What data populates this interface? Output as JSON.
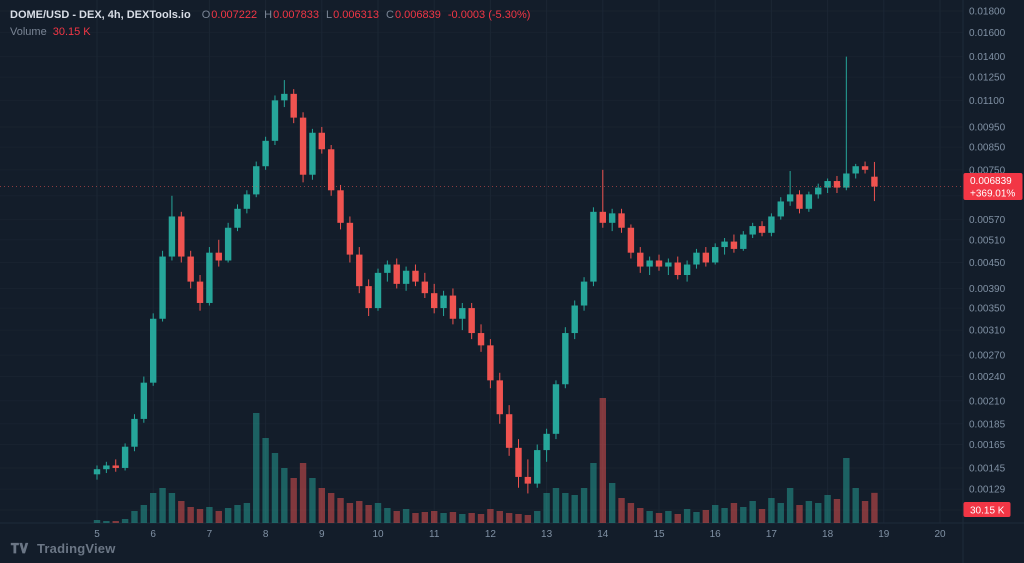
{
  "colors": {
    "background": "#131d2a",
    "grid": "#1b2634",
    "grid_h": "#18222f",
    "panel_border": "#1e2a39",
    "axis_text": "#8091a4",
    "up": "#26a69a",
    "down": "#ef5350",
    "accent_red": "#f23645",
    "legend_title": "#d9dee7",
    "legend_label": "#7a8595",
    "logo": "#6b7685",
    "badge_text": "#ffffff"
  },
  "legend": {
    "title": "DOME/USD - DEX, 4h, DEXTools.io",
    "o_label": "O",
    "o_value": "0.007222",
    "h_label": "H",
    "h_value": "0.007833",
    "l_label": "L",
    "l_value": "0.006313",
    "c_label": "C",
    "c_value": "0.006839",
    "change_value": "-0.0003 (-5.30%)",
    "volume_label": "Volume",
    "volume_value": "30.15 K"
  },
  "price_axis": {
    "current_price_badge": {
      "price": "0.006839",
      "change_pct": "+369.01%"
    },
    "volume_badge_value": "30.15 K"
  },
  "logo": {
    "text": "TradingView"
  },
  "chart_data": {
    "type": "candlestick",
    "title": "DOME/USD - DEX, 4h, DEXTools.io",
    "symbol": "DOME/USD",
    "venue": "DEX",
    "interval": "4h",
    "provider": "DEXTools.io",
    "y_scale": "log",
    "grid": true,
    "x_unit": "day-of-month",
    "candles_per_day": 6,
    "first_candle_day": 5.0,
    "current_price": 0.006839,
    "price_ticks": [
      0.018,
      0.016,
      0.014,
      0.0125,
      0.011,
      0.0095,
      0.0085,
      0.0075,
      0.0065,
      0.0057,
      0.0051,
      0.0045,
      0.0039,
      0.0035,
      0.0031,
      0.0027,
      0.0024,
      0.0021,
      0.00185,
      0.00165,
      0.00145,
      0.00129,
      0.00115
    ],
    "day_ticks": [
      5,
      6,
      7,
      8,
      9,
      10,
      11,
      12,
      13,
      14,
      15,
      16,
      17,
      18,
      19,
      20
    ],
    "volume_unit": "K",
    "candles": [
      [
        0.0014,
        0.00147,
        0.00136,
        0.00144,
        3
      ],
      [
        0.00144,
        0.0015,
        0.00141,
        0.00147,
        2
      ],
      [
        0.00147,
        0.00152,
        0.00142,
        0.00145,
        2
      ],
      [
        0.00145,
        0.00166,
        0.00143,
        0.00163,
        4
      ],
      [
        0.00163,
        0.00195,
        0.00159,
        0.0019,
        12
      ],
      [
        0.0019,
        0.0024,
        0.00186,
        0.00232,
        18
      ],
      [
        0.00232,
        0.0034,
        0.00228,
        0.0033,
        30
      ],
      [
        0.0033,
        0.0048,
        0.00325,
        0.00465,
        35
      ],
      [
        0.00465,
        0.0065,
        0.00455,
        0.0058,
        30
      ],
      [
        0.0058,
        0.00595,
        0.0045,
        0.00465,
        22
      ],
      [
        0.00465,
        0.0048,
        0.0039,
        0.00405,
        16
      ],
      [
        0.00405,
        0.0042,
        0.00345,
        0.0036,
        14
      ],
      [
        0.0036,
        0.0049,
        0.00355,
        0.00475,
        16
      ],
      [
        0.00475,
        0.0051,
        0.0044,
        0.00455,
        12
      ],
      [
        0.00455,
        0.0056,
        0.0045,
        0.00545,
        15
      ],
      [
        0.00545,
        0.0062,
        0.00535,
        0.00605,
        18
      ],
      [
        0.00605,
        0.0067,
        0.0059,
        0.00655,
        20
      ],
      [
        0.00655,
        0.00785,
        0.00645,
        0.00765,
        110
      ],
      [
        0.00765,
        0.009,
        0.0075,
        0.0088,
        85
      ],
      [
        0.0088,
        0.0113,
        0.0086,
        0.011,
        70
      ],
      [
        0.011,
        0.0123,
        0.0106,
        0.0114,
        55
      ],
      [
        0.0114,
        0.0117,
        0.0097,
        0.01,
        45
      ],
      [
        0.01,
        0.0103,
        0.007,
        0.0073,
        60
      ],
      [
        0.0073,
        0.0094,
        0.0071,
        0.0092,
        45
      ],
      [
        0.0092,
        0.0095,
        0.0082,
        0.0084,
        35
      ],
      [
        0.0084,
        0.0086,
        0.0065,
        0.0067,
        30
      ],
      [
        0.0067,
        0.0069,
        0.0054,
        0.0056,
        25
      ],
      [
        0.0056,
        0.0058,
        0.0045,
        0.0047,
        20
      ],
      [
        0.0047,
        0.0049,
        0.0038,
        0.00395,
        22
      ],
      [
        0.00395,
        0.0041,
        0.00335,
        0.0035,
        18
      ],
      [
        0.0035,
        0.00435,
        0.00345,
        0.00425,
        20
      ],
      [
        0.00425,
        0.00455,
        0.00405,
        0.00445,
        15
      ],
      [
        0.00445,
        0.0046,
        0.0039,
        0.004,
        12
      ],
      [
        0.004,
        0.0044,
        0.00385,
        0.0043,
        14
      ],
      [
        0.0043,
        0.00445,
        0.00395,
        0.00405,
        10
      ],
      [
        0.00405,
        0.00425,
        0.0037,
        0.0038,
        11
      ],
      [
        0.0038,
        0.004,
        0.0034,
        0.0035,
        12
      ],
      [
        0.0035,
        0.00385,
        0.00335,
        0.00375,
        10
      ],
      [
        0.00375,
        0.0039,
        0.0032,
        0.0033,
        11
      ],
      [
        0.0033,
        0.0036,
        0.0031,
        0.0035,
        9
      ],
      [
        0.0035,
        0.0036,
        0.00295,
        0.00305,
        10
      ],
      [
        0.00305,
        0.0032,
        0.00275,
        0.00285,
        9
      ],
      [
        0.00285,
        0.00295,
        0.00225,
        0.00235,
        14
      ],
      [
        0.00235,
        0.00245,
        0.00185,
        0.00195,
        12
      ],
      [
        0.00195,
        0.00205,
        0.00155,
        0.00162,
        10
      ],
      [
        0.00162,
        0.0017,
        0.0013,
        0.00138,
        9
      ],
      [
        0.00138,
        0.00152,
        0.00126,
        0.00133,
        8
      ],
      [
        0.00133,
        0.00165,
        0.0013,
        0.0016,
        12
      ],
      [
        0.0016,
        0.0018,
        0.0015,
        0.00175,
        30
      ],
      [
        0.00175,
        0.00235,
        0.0017,
        0.0023,
        35
      ],
      [
        0.0023,
        0.00315,
        0.00225,
        0.00305,
        30
      ],
      [
        0.00305,
        0.00365,
        0.00295,
        0.00355,
        28
      ],
      [
        0.00355,
        0.00415,
        0.00345,
        0.00405,
        35
      ],
      [
        0.00405,
        0.0061,
        0.00395,
        0.00595,
        60
      ],
      [
        0.00595,
        0.0075,
        0.00545,
        0.0056,
        125
      ],
      [
        0.0056,
        0.00605,
        0.00535,
        0.0059,
        40
      ],
      [
        0.0059,
        0.00605,
        0.0053,
        0.00545,
        25
      ],
      [
        0.00545,
        0.00555,
        0.0046,
        0.00475,
        20
      ],
      [
        0.00475,
        0.0049,
        0.00425,
        0.0044,
        15
      ],
      [
        0.0044,
        0.00465,
        0.0042,
        0.00455,
        12
      ],
      [
        0.00455,
        0.0047,
        0.0043,
        0.0044,
        10
      ],
      [
        0.0044,
        0.0046,
        0.0042,
        0.0045,
        12
      ],
      [
        0.0045,
        0.00465,
        0.0041,
        0.0042,
        9
      ],
      [
        0.0042,
        0.00455,
        0.00405,
        0.00445,
        14
      ],
      [
        0.00445,
        0.00485,
        0.00435,
        0.00475,
        11
      ],
      [
        0.00475,
        0.0049,
        0.0044,
        0.0045,
        13
      ],
      [
        0.0045,
        0.005,
        0.00445,
        0.0049,
        18
      ],
      [
        0.0049,
        0.00515,
        0.0047,
        0.00505,
        15
      ],
      [
        0.00505,
        0.00525,
        0.00475,
        0.00485,
        20
      ],
      [
        0.00485,
        0.00535,
        0.0048,
        0.00525,
        16
      ],
      [
        0.00525,
        0.0056,
        0.00515,
        0.0055,
        22
      ],
      [
        0.0055,
        0.00565,
        0.0052,
        0.0053,
        14
      ],
      [
        0.0053,
        0.0059,
        0.0052,
        0.0058,
        25
      ],
      [
        0.0058,
        0.00645,
        0.0057,
        0.0063,
        20
      ],
      [
        0.0063,
        0.00745,
        0.00615,
        0.00655,
        35
      ],
      [
        0.00655,
        0.0067,
        0.0059,
        0.00605,
        18
      ],
      [
        0.00605,
        0.00665,
        0.00595,
        0.00655,
        22
      ],
      [
        0.00655,
        0.00695,
        0.0064,
        0.0068,
        20
      ],
      [
        0.0068,
        0.00715,
        0.0066,
        0.00705,
        28
      ],
      [
        0.00705,
        0.00725,
        0.0066,
        0.0068,
        24
      ],
      [
        0.0068,
        0.014,
        0.0067,
        0.00735,
        65
      ],
      [
        0.00735,
        0.00775,
        0.00715,
        0.00765,
        35
      ],
      [
        0.00765,
        0.00785,
        0.00735,
        0.0075,
        22
      ],
      [
        0.007222,
        0.007833,
        0.006313,
        0.006839,
        30.15
      ]
    ]
  }
}
